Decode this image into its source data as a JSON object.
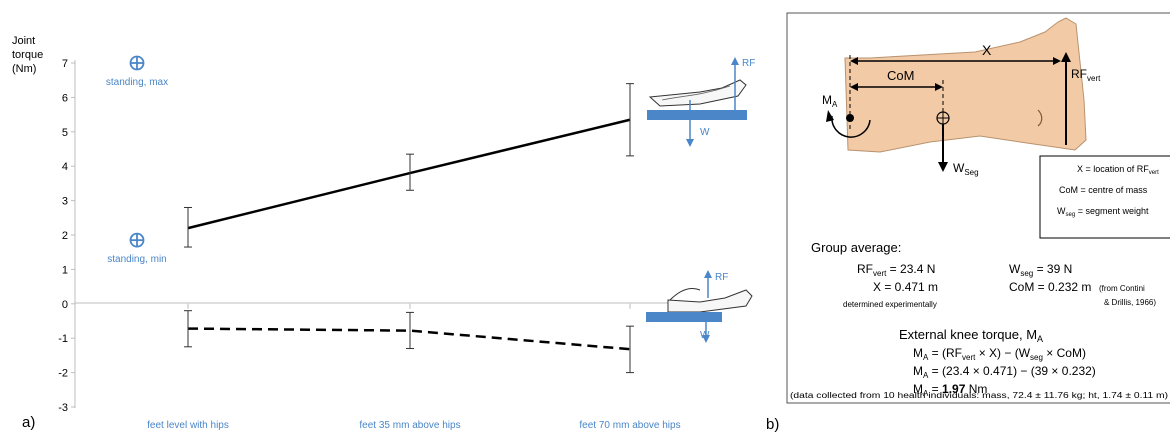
{
  "chart_data": {
    "type": "line",
    "ylabel_lines": [
      "Joint",
      "torque",
      "(Nm)"
    ],
    "ylim": [
      -3,
      7
    ],
    "yticks": [
      -3,
      -2,
      -1,
      0,
      1,
      2,
      3,
      4,
      5,
      6,
      7
    ],
    "categories": [
      "feet level with hips",
      "feet 35 mm above hips",
      "feet 70 mm above hips"
    ],
    "series": [
      {
        "style": "solid",
        "values": [
          2.2,
          3.8,
          5.35
        ],
        "err_low": [
          1.65,
          3.3,
          4.3
        ],
        "err_high": [
          2.8,
          4.35,
          6.4
        ]
      },
      {
        "style": "dashed",
        "values": [
          -0.72,
          -0.78,
          -1.32
        ],
        "err_low": [
          -1.25,
          -1.3,
          -2.0
        ],
        "err_high": [
          -0.2,
          -0.25,
          -0.65
        ]
      }
    ],
    "reference_points": [
      {
        "label": "standing, max",
        "value": 7.0
      },
      {
        "label": "standing, min",
        "value": 1.85
      }
    ],
    "annotations": {
      "rf": "RF",
      "w": "W"
    }
  },
  "panel_a_label": "a)",
  "panel_b_label": "b)",
  "panel_b": {
    "x_label": "X",
    "com_label": "CoM",
    "ma_main": "M",
    "ma_sub": "A",
    "rf_main": "RF",
    "rf_sub": "vert",
    "wseg_main": "W",
    "wseg_sub": "Seg",
    "legend": {
      "line1_prefix": "X = location of RF",
      "line1_sub": "vert",
      "line2": "CoM = centre of mass",
      "line3_prefix": "W",
      "line3_sub": "seg",
      "line3_suffix": " = segment weight"
    },
    "group_average": "Group average:",
    "rf_eq_main": "RF",
    "rf_eq_sub": "vert",
    "rf_eq_val": " = 23.4 N",
    "x_eq": "X = 0.471 m",
    "determined": "determined experimentally",
    "w_eq_main": "W",
    "w_eq_sub": "seg",
    "w_eq_val": " = 39 N",
    "com_eq": "CoM = 0.232 m",
    "com_src1": "(from Contini",
    "com_src2": "& Drillis, 1966)",
    "ext_title": "External knee torque, M",
    "ext_title_sub": "A",
    "eq1_l": "M",
    "eq1_lsub": "A",
    "eq1_a": " = (RF",
    "eq1_asub": "vert",
    "eq1_b": " × X) − (W",
    "eq1_bsub": "seg",
    "eq1_c": " × CoM)",
    "eq2_l": "M",
    "eq2_lsub": "A",
    "eq2_r": " = (23.4 × 0.471) − (39 × 0.232)",
    "eq3_l": "M",
    "eq3_lsub": "A",
    "eq3_eq": " = ",
    "eq3_val": "1.97",
    "eq3_unit": " Nm",
    "footnote": "(data collected from 10 health individuals: mass, 72.4 ± 11.76 kg; ht, 1.74 ± 0.11 m)"
  }
}
